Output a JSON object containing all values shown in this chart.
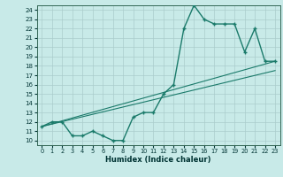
{
  "title": "",
  "xlabel": "Humidex (Indice chaleur)",
  "bg_color": "#c8eae8",
  "grid_color": "#aacccc",
  "line_color": "#1a7a6a",
  "xlim": [
    -0.5,
    23.5
  ],
  "ylim": [
    9.5,
    24.5
  ],
  "xticks": [
    0,
    1,
    2,
    3,
    4,
    5,
    6,
    7,
    8,
    9,
    10,
    11,
    12,
    13,
    14,
    15,
    16,
    17,
    18,
    19,
    20,
    21,
    22,
    23
  ],
  "yticks": [
    10,
    11,
    12,
    13,
    14,
    15,
    16,
    17,
    18,
    19,
    20,
    21,
    22,
    23,
    24
  ],
  "line1_x": [
    0,
    1,
    2,
    3,
    4,
    5,
    6,
    7,
    8,
    9,
    10,
    11,
    12,
    13,
    14,
    15,
    16,
    17,
    18,
    19,
    20,
    21,
    22,
    23
  ],
  "line1_y": [
    11.5,
    12.0,
    12.0,
    10.5,
    10.5,
    11.0,
    10.5,
    10.0,
    10.0,
    12.5,
    13.0,
    13.0,
    15.0,
    16.0,
    22.0,
    24.5,
    23.0,
    22.5,
    22.5,
    22.5,
    19.5,
    22.0,
    18.5,
    18.5
  ],
  "line2_x": [
    0,
    23
  ],
  "line2_y": [
    11.5,
    18.5
  ],
  "line3_x": [
    0,
    23
  ],
  "line3_y": [
    11.5,
    17.5
  ]
}
